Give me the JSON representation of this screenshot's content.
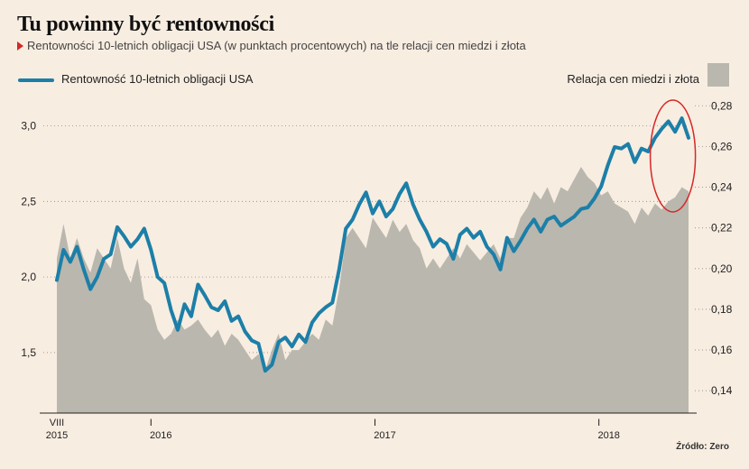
{
  "title": "Tu powinny być rentowności",
  "subtitle": "Rentowności 10-letnich obligacji USA (w punktach procentowych) na tle relacji cen miedzi i złota",
  "source": "Źródło: Zero",
  "colors": {
    "background": "#f8ede1",
    "line": "#1c7fa8",
    "area": "#bab7ae",
    "highlight": "#d62828"
  },
  "chart_data": {
    "type": "line",
    "legend": {
      "line": "Rentowność 10-letnich obligacji USA",
      "area": "Relacja cen miedzi i złota"
    },
    "x_axis": {
      "labels": [
        {
          "tick": "VIII",
          "year": "2015",
          "date": 2015.58
        },
        {
          "tick": "I",
          "year": "2016",
          "date": 2016.0
        },
        {
          "tick": "I",
          "year": "2017",
          "date": 2017.0
        },
        {
          "tick": "I",
          "year": "2018",
          "date": 2018.0
        }
      ],
      "xlim": [
        2015.58,
        2018.4
      ]
    },
    "y_left": {
      "ticks": [
        "3,0",
        "2,5",
        "2,0",
        "1,5"
      ],
      "values": [
        3.0,
        2.5,
        2.0,
        1.5
      ],
      "ylim": [
        1.1,
        3.2
      ]
    },
    "y_right": {
      "ticks": [
        "0,28",
        "0,26",
        "0,24",
        "0,22",
        "0,20",
        "0,18",
        "0,16",
        "0,14"
      ],
      "values": [
        0.28,
        0.26,
        0.24,
        0.22,
        0.2,
        0.18,
        0.16,
        0.14
      ],
      "ylim": [
        0.129,
        0.285
      ]
    },
    "series": [
      {
        "name": "Rentowność 10-letnich obligacji USA",
        "axis": "left",
        "type": "line",
        "x": [
          2015.58,
          2015.61,
          2015.64,
          2015.67,
          2015.7,
          2015.73,
          2015.76,
          2015.79,
          2015.82,
          2015.85,
          2015.88,
          2015.91,
          2015.94,
          2015.97,
          2016.0,
          2016.03,
          2016.06,
          2016.09,
          2016.12,
          2016.15,
          2016.18,
          2016.21,
          2016.24,
          2016.27,
          2016.3,
          2016.33,
          2016.36,
          2016.39,
          2016.42,
          2016.45,
          2016.48,
          2016.51,
          2016.54,
          2016.57,
          2016.6,
          2016.63,
          2016.66,
          2016.69,
          2016.72,
          2016.75,
          2016.78,
          2016.81,
          2016.84,
          2016.87,
          2016.9,
          2016.93,
          2016.96,
          2016.99,
          2017.02,
          2017.05,
          2017.08,
          2017.11,
          2017.14,
          2017.17,
          2017.2,
          2017.23,
          2017.26,
          2017.29,
          2017.32,
          2017.35,
          2017.38,
          2017.41,
          2017.44,
          2017.47,
          2017.5,
          2017.53,
          2017.56,
          2017.59,
          2017.62,
          2017.65,
          2017.68,
          2017.71,
          2017.74,
          2017.77,
          2017.8,
          2017.83,
          2017.86,
          2017.89,
          2017.92,
          2017.95,
          2017.98,
          2018.01,
          2018.04,
          2018.07,
          2018.1,
          2018.13,
          2018.16,
          2018.19,
          2018.22,
          2018.25,
          2018.28,
          2018.31,
          2018.34,
          2018.37,
          2018.4
        ],
        "values": [
          1.98,
          2.18,
          2.1,
          2.2,
          2.05,
          1.92,
          2.0,
          2.12,
          2.15,
          2.33,
          2.27,
          2.2,
          2.25,
          2.32,
          2.18,
          2.0,
          1.96,
          1.78,
          1.65,
          1.82,
          1.74,
          1.95,
          1.88,
          1.8,
          1.78,
          1.84,
          1.71,
          1.74,
          1.64,
          1.58,
          1.56,
          1.38,
          1.42,
          1.57,
          1.6,
          1.54,
          1.62,
          1.57,
          1.7,
          1.76,
          1.8,
          1.83,
          2.05,
          2.32,
          2.38,
          2.48,
          2.56,
          2.42,
          2.5,
          2.4,
          2.45,
          2.55,
          2.62,
          2.48,
          2.38,
          2.3,
          2.2,
          2.25,
          2.22,
          2.12,
          2.28,
          2.32,
          2.26,
          2.3,
          2.2,
          2.15,
          2.05,
          2.26,
          2.17,
          2.24,
          2.32,
          2.38,
          2.3,
          2.38,
          2.4,
          2.34,
          2.37,
          2.4,
          2.45,
          2.46,
          2.52,
          2.6,
          2.74,
          2.86,
          2.85,
          2.88,
          2.76,
          2.85,
          2.83,
          2.92,
          2.98,
          3.03,
          2.96,
          3.05,
          2.92
        ]
      },
      {
        "name": "Relacja cen miedzi i złota",
        "axis": "right",
        "type": "area",
        "x": [
          2015.58,
          2015.61,
          2015.64,
          2015.67,
          2015.7,
          2015.73,
          2015.76,
          2015.79,
          2015.82,
          2015.85,
          2015.88,
          2015.91,
          2015.94,
          2015.97,
          2016.0,
          2016.03,
          2016.06,
          2016.09,
          2016.12,
          2016.15,
          2016.18,
          2016.21,
          2016.24,
          2016.27,
          2016.3,
          2016.33,
          2016.36,
          2016.39,
          2016.42,
          2016.45,
          2016.48,
          2016.51,
          2016.54,
          2016.57,
          2016.6,
          2016.63,
          2016.66,
          2016.69,
          2016.72,
          2016.75,
          2016.78,
          2016.81,
          2016.84,
          2016.87,
          2016.9,
          2016.93,
          2016.96,
          2016.99,
          2017.02,
          2017.05,
          2017.08,
          2017.11,
          2017.14,
          2017.17,
          2017.2,
          2017.23,
          2017.26,
          2017.29,
          2017.32,
          2017.35,
          2017.38,
          2017.41,
          2017.44,
          2017.47,
          2017.5,
          2017.53,
          2017.56,
          2017.59,
          2017.62,
          2017.65,
          2017.68,
          2017.71,
          2017.74,
          2017.77,
          2017.8,
          2017.83,
          2017.86,
          2017.89,
          2017.92,
          2017.95,
          2017.98,
          2018.01,
          2018.04,
          2018.07,
          2018.1,
          2018.13,
          2018.16,
          2018.19,
          2018.22,
          2018.25,
          2018.28,
          2018.31,
          2018.34,
          2018.37,
          2018.4
        ],
        "values": [
          0.205,
          0.222,
          0.205,
          0.215,
          0.205,
          0.198,
          0.21,
          0.205,
          0.2,
          0.215,
          0.2,
          0.193,
          0.205,
          0.185,
          0.182,
          0.17,
          0.165,
          0.168,
          0.175,
          0.17,
          0.172,
          0.175,
          0.17,
          0.166,
          0.17,
          0.162,
          0.168,
          0.165,
          0.16,
          0.155,
          0.158,
          0.15,
          0.16,
          0.168,
          0.155,
          0.16,
          0.16,
          0.164,
          0.168,
          0.165,
          0.175,
          0.172,
          0.19,
          0.215,
          0.22,
          0.215,
          0.21,
          0.225,
          0.22,
          0.215,
          0.224,
          0.218,
          0.222,
          0.214,
          0.21,
          0.2,
          0.205,
          0.2,
          0.205,
          0.21,
          0.205,
          0.212,
          0.208,
          0.204,
          0.208,
          0.212,
          0.205,
          0.215,
          0.215,
          0.225,
          0.23,
          0.238,
          0.234,
          0.24,
          0.232,
          0.24,
          0.238,
          0.244,
          0.25,
          0.245,
          0.242,
          0.236,
          0.238,
          0.232,
          0.23,
          0.228,
          0.222,
          0.23,
          0.226,
          0.232,
          0.229,
          0.233,
          0.235,
          0.24,
          0.238
        ]
      }
    ],
    "highlight": "red ellipse around most recent peak (2018)",
    "grid": "dotted horizontal"
  }
}
